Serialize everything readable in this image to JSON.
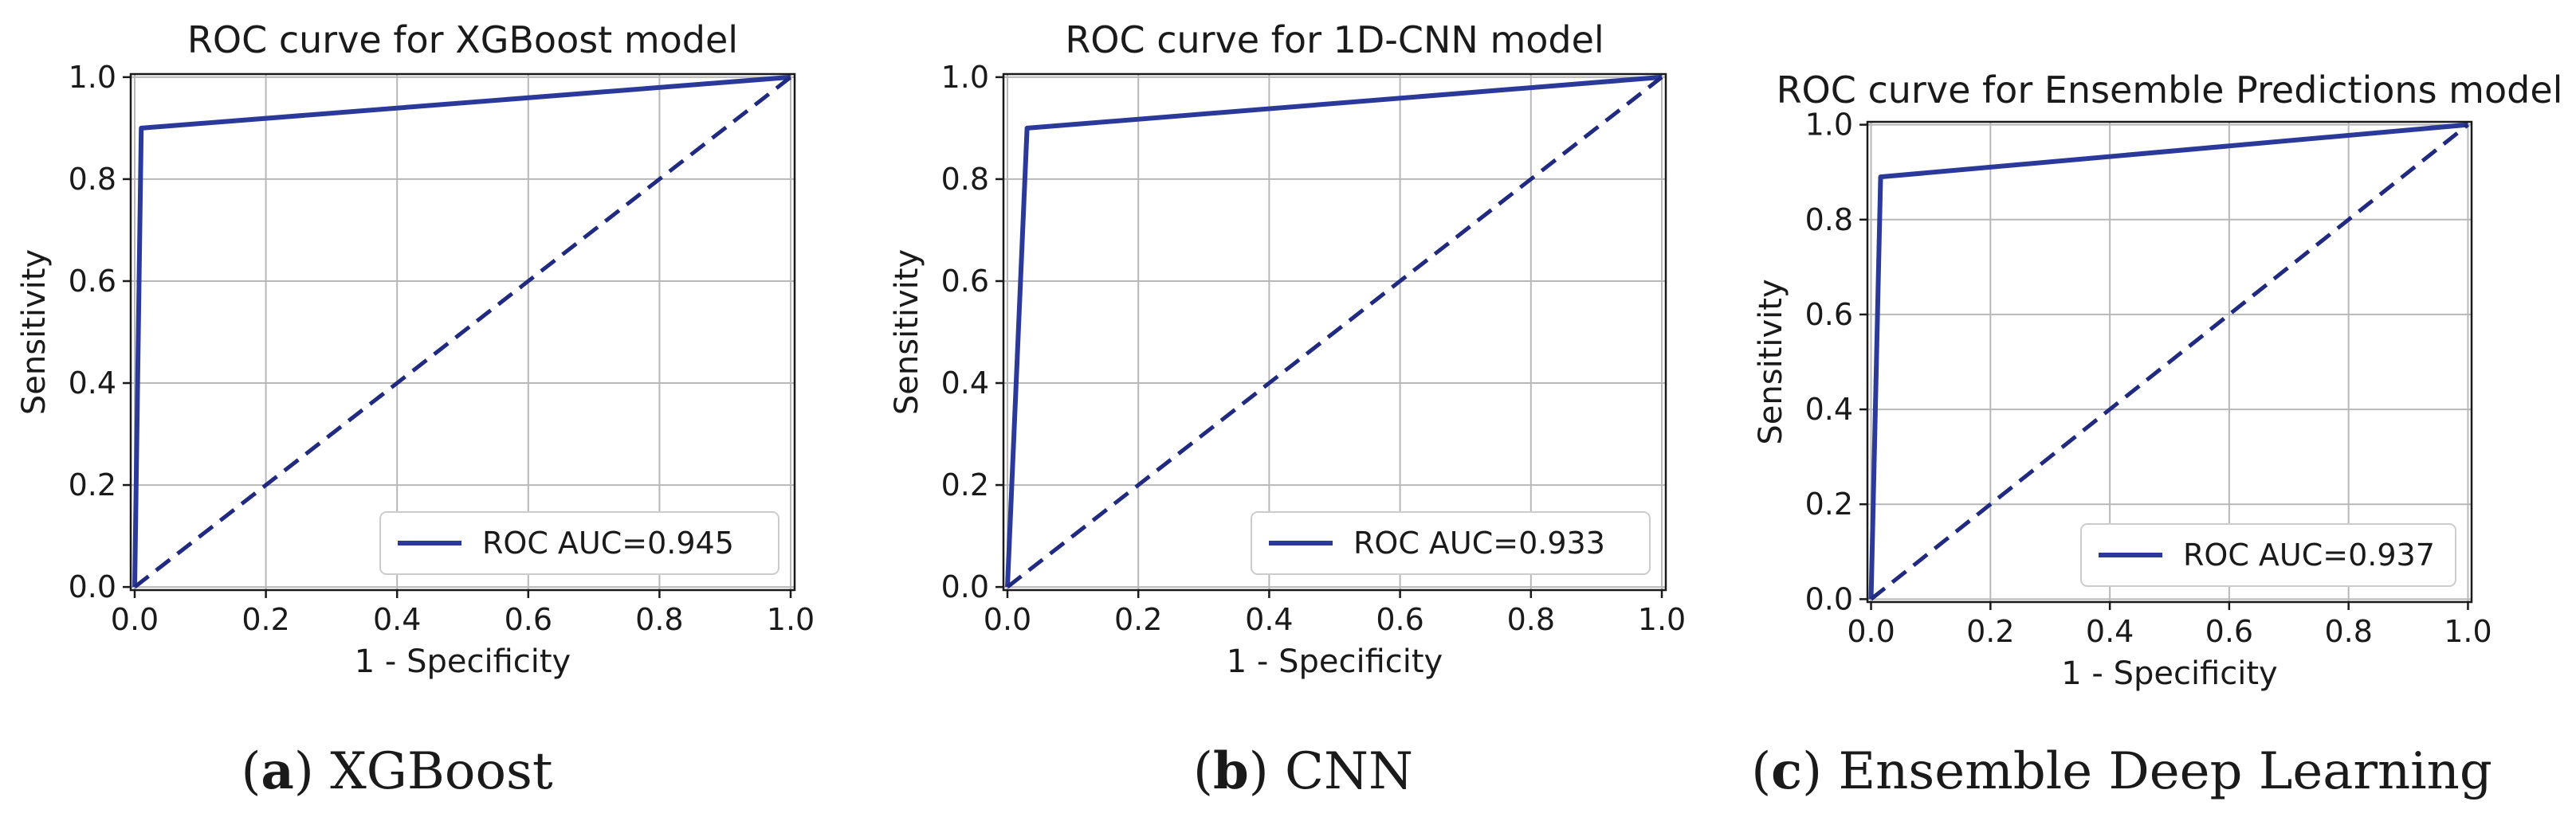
{
  "chart_data": [
    {
      "type": "line",
      "title": "ROC curve for XGBoost model",
      "xlabel": "1 - Specificity",
      "ylabel": "Sensitivity",
      "xlim": [
        0.0,
        1.0
      ],
      "ylim": [
        0.0,
        1.0
      ],
      "xticks": [
        "0.0",
        "0.2",
        "0.4",
        "0.6",
        "0.8",
        "1.0"
      ],
      "yticks": [
        "0.0",
        "0.2",
        "0.4",
        "0.6",
        "0.8",
        "1.0"
      ],
      "grid": true,
      "legend_position": "lower-right",
      "series": [
        {
          "name": "ROC AUC=0.945",
          "style": "solid",
          "color": "#2b3a9a",
          "x": [
            0.0,
            0.01,
            1.0
          ],
          "y": [
            0.0,
            0.9,
            1.0
          ]
        },
        {
          "style": "dashed",
          "color": "#1f2a80",
          "x": [
            0.0,
            1.0
          ],
          "y": [
            0.0,
            1.0
          ]
        }
      ],
      "caption_letter": "a",
      "caption_text": "XGBoost"
    },
    {
      "type": "line",
      "title": "ROC curve for 1D-CNN model",
      "xlabel": "1 - Specificity",
      "ylabel": "Sensitivity",
      "xlim": [
        0.0,
        1.0
      ],
      "ylim": [
        0.0,
        1.0
      ],
      "xticks": [
        "0.0",
        "0.2",
        "0.4",
        "0.6",
        "0.8",
        "1.0"
      ],
      "yticks": [
        "0.0",
        "0.2",
        "0.4",
        "0.6",
        "0.8",
        "1.0"
      ],
      "grid": true,
      "legend_position": "lower-right",
      "series": [
        {
          "name": "ROC AUC=0.933",
          "style": "solid",
          "color": "#2b3a9a",
          "x": [
            0.0,
            0.03,
            1.0
          ],
          "y": [
            0.0,
            0.9,
            1.0
          ]
        },
        {
          "style": "dashed",
          "color": "#1f2a80",
          "x": [
            0.0,
            1.0
          ],
          "y": [
            0.0,
            1.0
          ]
        }
      ],
      "caption_letter": "b",
      "caption_text": "CNN"
    },
    {
      "type": "line",
      "title": "ROC curve for Ensemble Predictions model",
      "xlabel": "1 - Specificity",
      "ylabel": "Sensitivity",
      "xlim": [
        0.0,
        1.0
      ],
      "ylim": [
        0.0,
        1.0
      ],
      "xticks": [
        "0.0",
        "0.2",
        "0.4",
        "0.6",
        "0.8",
        "1.0"
      ],
      "yticks": [
        "0.0",
        "0.2",
        "0.4",
        "0.6",
        "0.8",
        "1.0"
      ],
      "grid": true,
      "legend_position": "lower-right",
      "series": [
        {
          "name": "ROC AUC=0.937",
          "style": "solid",
          "color": "#2b3a9a",
          "x": [
            0.0,
            0.016,
            1.0
          ],
          "y": [
            0.0,
            0.89,
            1.0
          ]
        },
        {
          "style": "dashed",
          "color": "#1f2a80",
          "x": [
            0.0,
            1.0
          ],
          "y": [
            0.0,
            1.0
          ]
        }
      ],
      "caption_letter": "c",
      "caption_text": "Ensemble Deep Learning"
    }
  ]
}
